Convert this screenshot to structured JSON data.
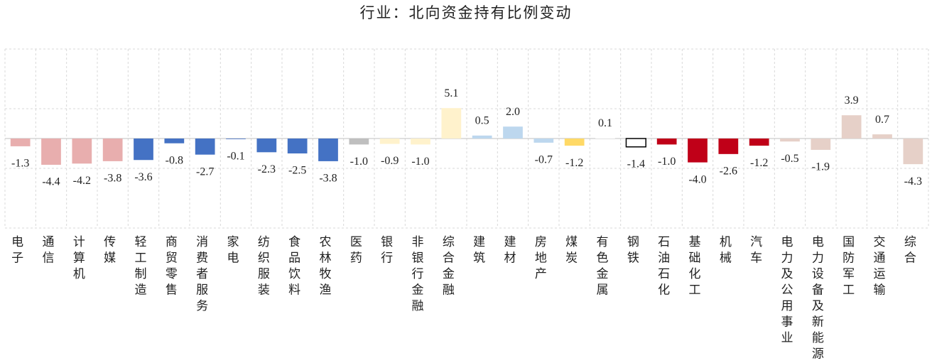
{
  "chart_data": {
    "type": "bar",
    "title": "行业：北向资金持有比例变动",
    "categories": [
      "电子",
      "通信",
      "计算机",
      "传媒",
      "轻工制造",
      "商贸零售",
      "消费者服务",
      "家电",
      "纺织服装",
      "食品饮料",
      "农林牧渔",
      "医药",
      "银行",
      "非银行金融",
      "综合金融",
      "建筑",
      "建材",
      "房地产",
      "煤炭",
      "有色金属",
      "钢铁",
      "石油石化",
      "基础化工",
      "机械",
      "汽车",
      "电力及公用事业",
      "电力设备及新能源",
      "国防军工",
      "交通运输",
      "综合"
    ],
    "values": [
      -1.3,
      -4.4,
      -4.2,
      -3.8,
      -3.6,
      -0.8,
      -2.7,
      -0.1,
      -2.3,
      -2.5,
      -3.8,
      -1.0,
      -0.9,
      -1.0,
      5.1,
      0.5,
      2.0,
      -0.7,
      -1.2,
      0.1,
      -1.4,
      -1.0,
      -4.0,
      -2.6,
      -1.2,
      -0.5,
      -1.9,
      3.9,
      0.7,
      -4.3
    ],
    "value_labels": [
      "-1.3",
      "-4.4",
      "-4.2",
      "-3.8",
      "-3.6",
      "-0.8",
      "-2.7",
      "-0.1",
      "-2.3",
      "-2.5",
      "-3.8",
      "-1.0",
      "-0.9",
      "-1.0",
      "5.1",
      "0.5",
      "2.0",
      "-0.7",
      "-1.2",
      "0.1",
      "-1.4",
      "-1.0",
      "-4.0",
      "-2.6",
      "-1.2",
      "-0.5",
      "-1.9",
      "3.9",
      "0.7",
      "-4.3"
    ],
    "colors": [
      "#e8aeae",
      "#e8aeae",
      "#e8aeae",
      "#e8aeae",
      "#4472c4",
      "#4472c4",
      "#4472c4",
      "#4472c4",
      "#4472c4",
      "#4472c4",
      "#4472c4",
      "#bfbfbf",
      "#fff2cc",
      "#fff2cc",
      "#fff2cc",
      "#bdd7ee",
      "#bdd7ee",
      "#bdd7ee",
      "#ffd966",
      "#ffffff",
      "#ffffff",
      "#c00018",
      "#c00018",
      "#c00018",
      "#c00018",
      "#e6d0c8",
      "#e6d0c8",
      "#e6d0c8",
      "#e6d0c8",
      "#e6d0c8"
    ],
    "ylim": [
      -15,
      15
    ],
    "yticks": [
      -15,
      -5,
      5,
      15
    ],
    "grid": true
  }
}
